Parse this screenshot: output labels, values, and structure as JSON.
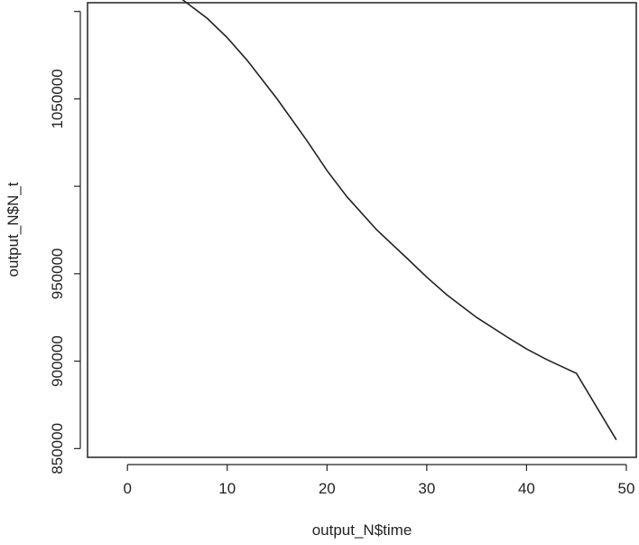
{
  "chart_data": {
    "type": "line",
    "xlabel": "output_N$time",
    "ylabel": "output_N$N_t",
    "xlim": [
      -4,
      51
    ],
    "ylim": [
      845000,
      1105000
    ],
    "x_ticks": [
      0,
      10,
      20,
      30,
      40,
      50
    ],
    "y_ticks": [
      850000,
      900000,
      950000,
      1000000,
      1050000,
      1100000
    ],
    "y_tick_labels": [
      "850000",
      "900000",
      "950000",
      "",
      "1050000",
      ""
    ],
    "grid": false,
    "series": [
      {
        "x": [
          0,
          5,
          8,
          10,
          12,
          15,
          18,
          20,
          22,
          25,
          28,
          30,
          32,
          35,
          38,
          40,
          42,
          45,
          49
        ],
        "y": [
          1125000,
          1109000,
          1096000,
          1085000,
          1072000,
          1050000,
          1026000,
          1009000,
          994000,
          975000,
          959000,
          948000,
          938000,
          925000,
          914000,
          907000,
          901000,
          893000,
          855000
        ]
      }
    ],
    "color": "#222222"
  }
}
